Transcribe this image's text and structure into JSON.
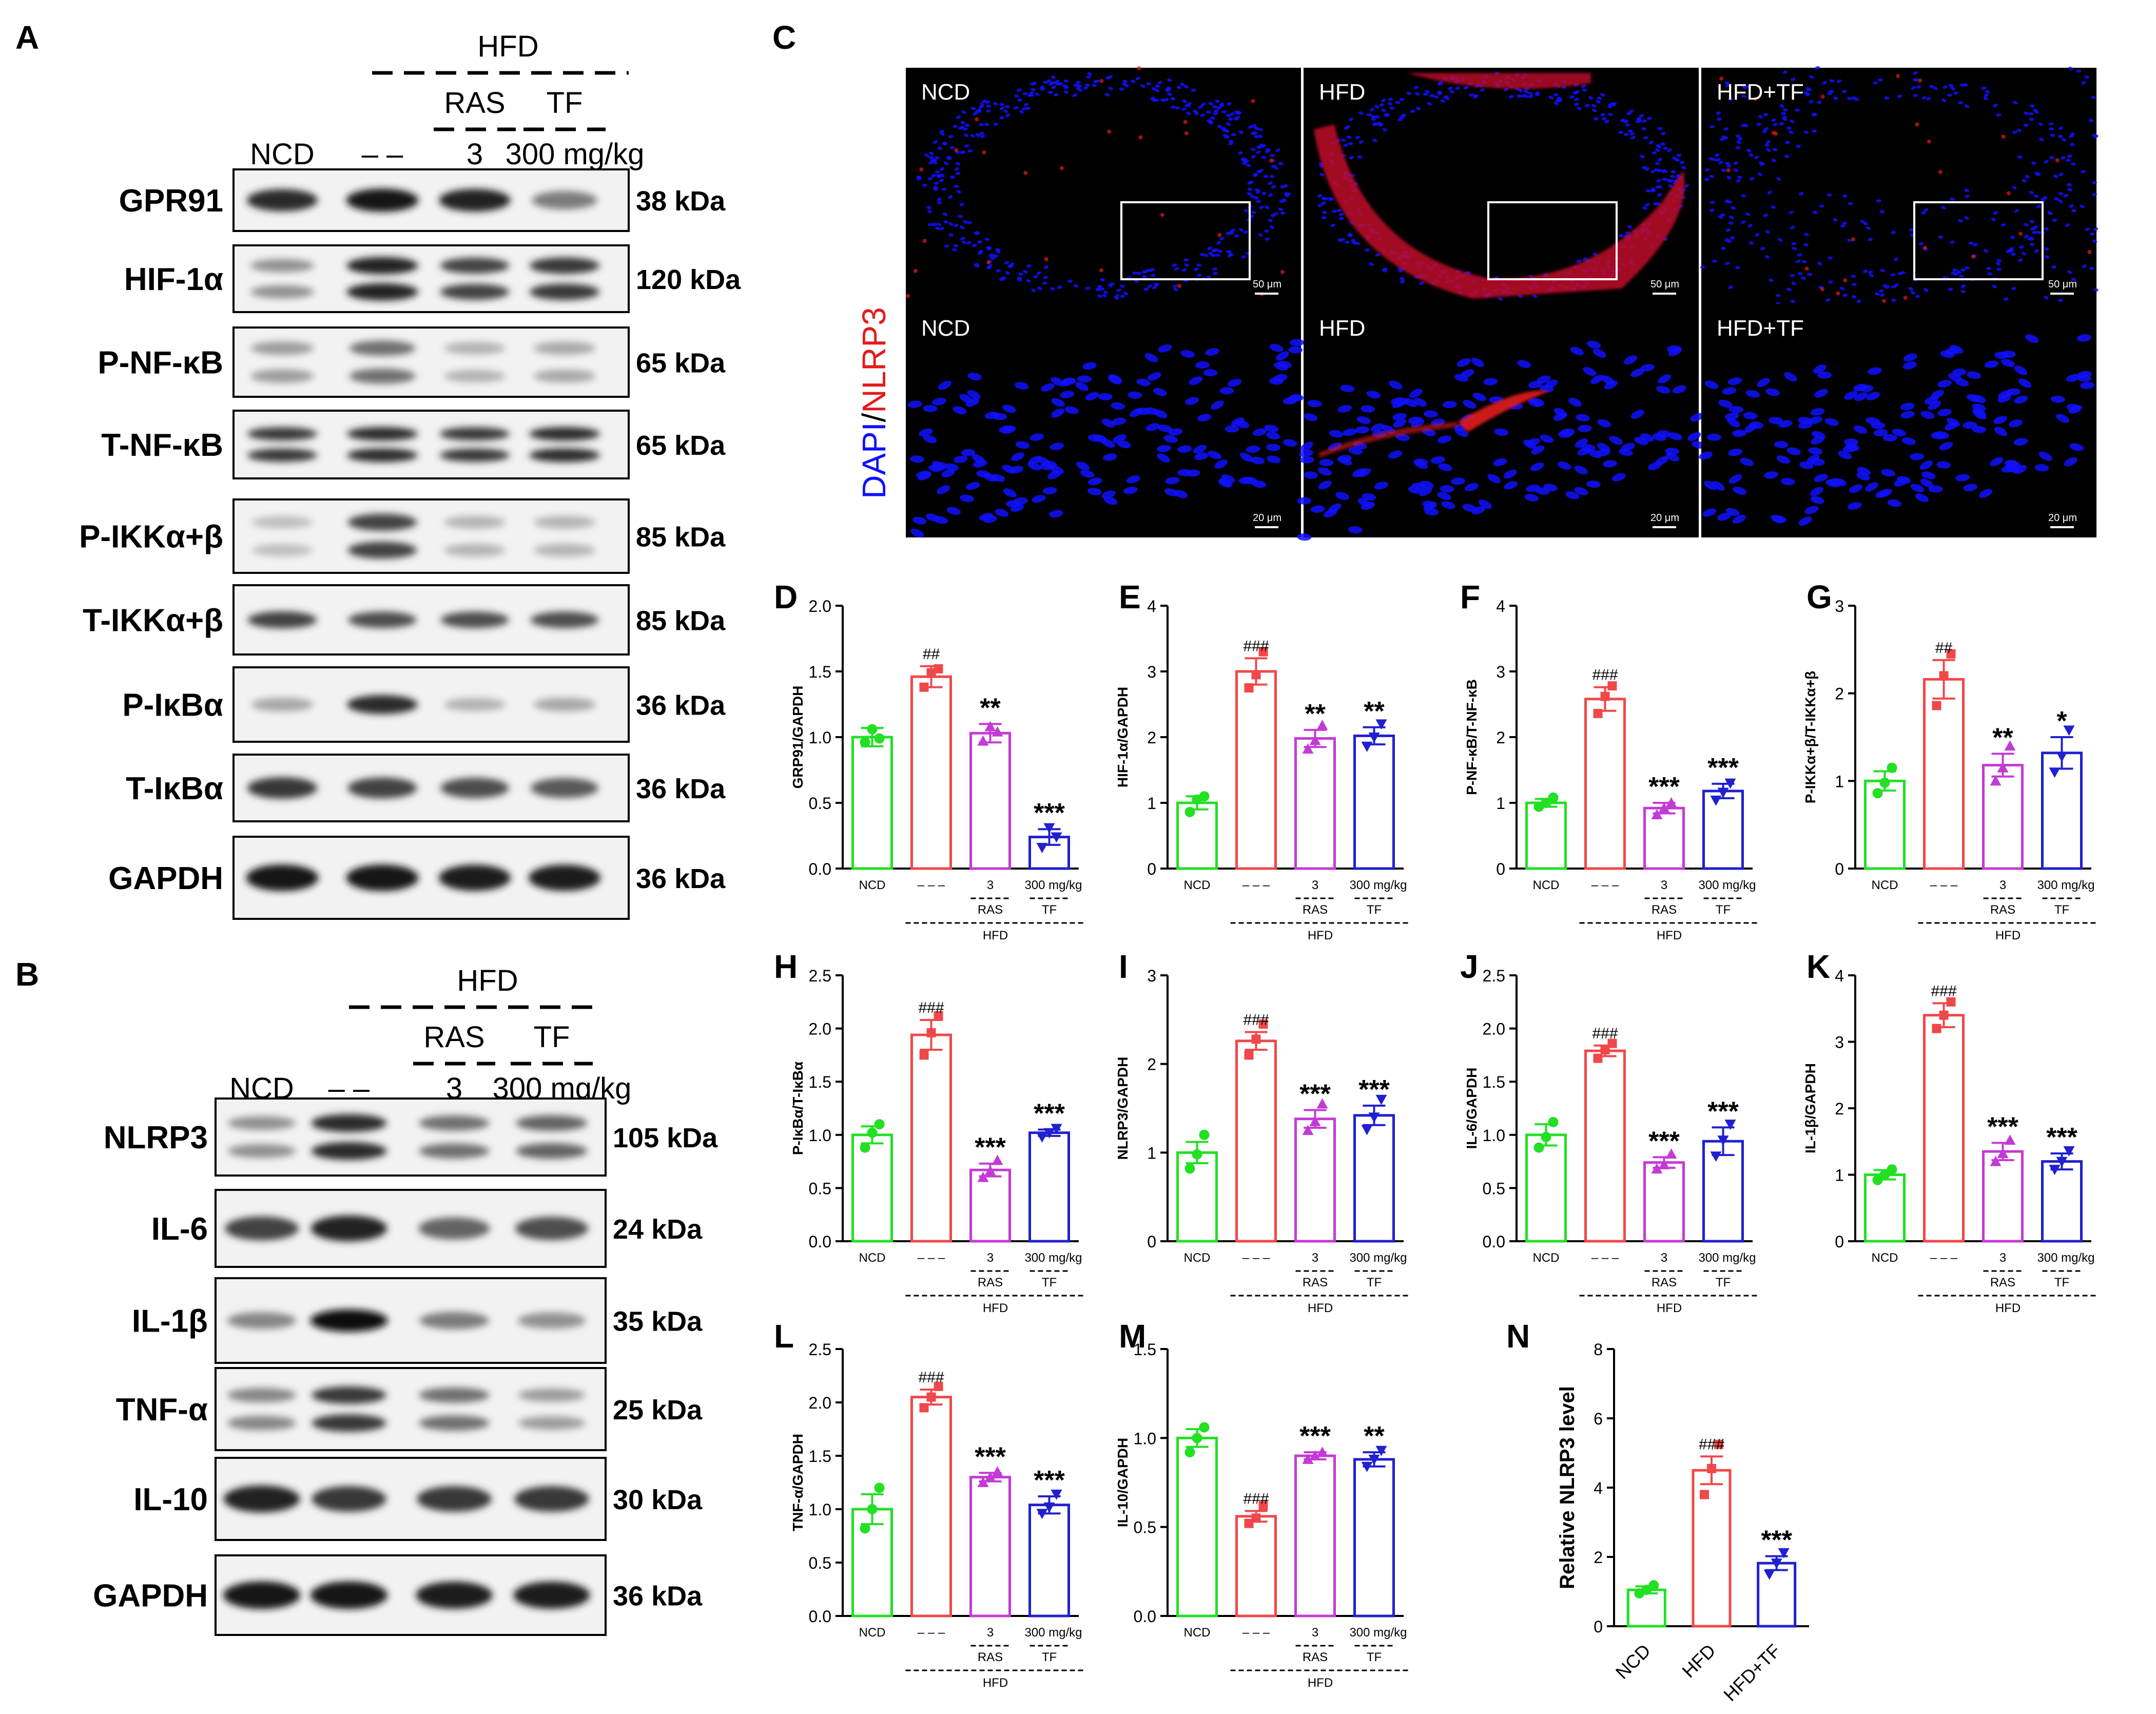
{
  "panel_letters": [
    "A",
    "B",
    "C",
    "D",
    "E",
    "F",
    "G",
    "H",
    "I",
    "J",
    "K",
    "L",
    "M",
    "N"
  ],
  "colors": {
    "ncd": "#22e022",
    "hfd": "#f0484a",
    "ras": "#c43ad6",
    "tf": "#2020d0",
    "dapi": "#1010ff",
    "nlrp3": "#e41a1c",
    "hfd_bg_red": "#c0102a"
  },
  "blot_A": {
    "hfd_label": "HFD",
    "ras_label": "RAS",
    "tf_label": "TF",
    "lane_ncd": "NCD",
    "lane_hfd": "– –",
    "lane_ras": "3",
    "lane_tf": "300 mg/kg",
    "bands": [
      {
        "protein": "GPR91",
        "kda": "38 kDa"
      },
      {
        "protein": "HIF-1α",
        "kda": "120 kDa"
      },
      {
        "protein": "P-NF-κB",
        "kda": "65 kDa"
      },
      {
        "protein": "T-NF-κB",
        "kda": "65 kDa"
      },
      {
        "protein": "P-IKKα+β",
        "kda": "85 kDa"
      },
      {
        "protein": "T-IKKα+β",
        "kda": "85 kDa"
      },
      {
        "protein": "P-IκBα",
        "kda": "36 kDa"
      },
      {
        "protein": "T-IκBα",
        "kda": "36 kDa"
      },
      {
        "protein": "GAPDH",
        "kda": "36 kDa"
      }
    ]
  },
  "blot_B": {
    "hfd_label": "HFD",
    "ras_label": "RAS",
    "tf_label": "TF",
    "lane_ncd": "NCD",
    "lane_hfd": "– –",
    "lane_ras": "3",
    "lane_tf": "300 mg/kg",
    "bands": [
      {
        "protein": "NLRP3",
        "kda": "105 kDa"
      },
      {
        "protein": "IL-6",
        "kda": "24 kDa"
      },
      {
        "protein": "IL-1β",
        "kda": "35 kDa"
      },
      {
        "protein": "TNF-α",
        "kda": "25 kDa"
      },
      {
        "protein": "IL-10",
        "kda": "30 kDa"
      },
      {
        "protein": "GAPDH",
        "kda": "36 kDa"
      }
    ]
  },
  "micro_C": {
    "axis_label_dapi": "DAPI",
    "axis_label_sep": "/",
    "axis_label_nlrp3": "NLRP3",
    "panels": [
      {
        "label": "NCD",
        "scale": "50 μm"
      },
      {
        "label": "HFD",
        "scale": "50 μm"
      },
      {
        "label": "HFD+TF",
        "scale": "50 μm"
      },
      {
        "label": "NCD",
        "scale": "20 μm"
      },
      {
        "label": "HFD",
        "scale": "20 μm"
      },
      {
        "label": "HFD+TF",
        "scale": "20 μm"
      }
    ]
  },
  "group_labels": {
    "ncd": "NCD",
    "hfd": "– – –",
    "ras_dose": "3",
    "tf_dose": "300 mg/kg",
    "ras": "RAS",
    "tf": "TF",
    "hfd_under": "HFD"
  },
  "chart_data": [
    {
      "panel": "D",
      "type": "bar",
      "ylabel": "GRP91/GAPDH",
      "ylim": [
        0,
        2.0
      ],
      "yticks": [
        "0.0",
        "0.5",
        "1.0",
        "1.5",
        "2.0"
      ],
      "values": [
        1.0,
        1.46,
        1.03,
        0.24
      ],
      "points": [
        [
          0.96,
          1.06,
          0.99
        ],
        [
          1.38,
          1.49,
          1.52
        ],
        [
          0.97,
          1.08,
          1.04
        ],
        [
          0.16,
          0.31,
          0.24
        ]
      ],
      "sem": [
        0.07,
        0.08,
        0.07,
        0.06
      ],
      "marks": [
        "",
        "##",
        "**",
        "***"
      ]
    },
    {
      "panel": "E",
      "type": "bar",
      "ylabel": "HIF-1α/GAPDH",
      "ylim": [
        0,
        4
      ],
      "yticks": [
        "0",
        "1",
        "2",
        "3",
        "4"
      ],
      "values": [
        1.0,
        3.0,
        1.98,
        2.02
      ],
      "points": [
        [
          0.86,
          1.05,
          1.1
        ],
        [
          2.75,
          2.95,
          3.3
        ],
        [
          1.82,
          1.95,
          2.18
        ],
        [
          1.86,
          2.0,
          2.2
        ]
      ],
      "sem": [
        0.1,
        0.2,
        0.13,
        0.13
      ],
      "marks": [
        "",
        "###",
        "**",
        "**"
      ]
    },
    {
      "panel": "F",
      "type": "bar",
      "ylabel": "P-NF-κB/T-NF-κB",
      "ylim": [
        0,
        4
      ],
      "yticks": [
        "0",
        "1",
        "2",
        "3",
        "4"
      ],
      "values": [
        1.0,
        2.58,
        0.92,
        1.18
      ],
      "points": [
        [
          0.94,
          1.0,
          1.08
        ],
        [
          2.36,
          2.62,
          2.78
        ],
        [
          0.82,
          0.92,
          1.0
        ],
        [
          1.04,
          1.16,
          1.3
        ]
      ],
      "sem": [
        0.06,
        0.18,
        0.08,
        0.11
      ],
      "marks": [
        "",
        "###",
        "***",
        "***"
      ]
    },
    {
      "panel": "G",
      "type": "bar",
      "ylabel": "P-IKKα+β/T-IKKα+β",
      "ylim": [
        0,
        3
      ],
      "yticks": [
        "0",
        "1",
        "2",
        "3"
      ],
      "values": [
        1.0,
        2.16,
        1.18,
        1.32
      ],
      "points": [
        [
          0.86,
          0.98,
          1.15
        ],
        [
          1.86,
          2.2,
          2.45
        ],
        [
          1.0,
          1.15,
          1.4
        ],
        [
          1.1,
          1.28,
          1.58
        ]
      ],
      "sem": [
        0.11,
        0.22,
        0.13,
        0.18
      ],
      "marks": [
        "",
        "##",
        "**",
        "*"
      ]
    },
    {
      "panel": "H",
      "type": "bar",
      "ylabel": "P-IκBα/T-IκBα",
      "ylim": [
        0,
        2.5
      ],
      "yticks": [
        "0.0",
        "0.5",
        "1.0",
        "1.5",
        "2.0",
        "2.5"
      ],
      "values": [
        1.0,
        1.94,
        0.67,
        1.02
      ],
      "points": [
        [
          0.88,
          1.02,
          1.1
        ],
        [
          1.75,
          1.96,
          2.12
        ],
        [
          0.6,
          0.66,
          0.76
        ],
        [
          0.98,
          1.02,
          1.06
        ]
      ],
      "sem": [
        0.08,
        0.14,
        0.06,
        0.03
      ],
      "marks": [
        "",
        "###",
        "***",
        "***"
      ]
    },
    {
      "panel": "I",
      "type": "bar",
      "ylabel": "NLRP3/GAPDH",
      "ylim": [
        0,
        3
      ],
      "yticks": [
        "0",
        "1",
        "2",
        "3"
      ],
      "values": [
        1.0,
        2.26,
        1.38,
        1.42
      ],
      "points": [
        [
          0.82,
          0.98,
          1.2
        ],
        [
          2.1,
          2.28,
          2.45
        ],
        [
          1.25,
          1.35,
          1.55
        ],
        [
          1.26,
          1.4,
          1.6
        ]
      ],
      "sem": [
        0.12,
        0.1,
        0.1,
        0.11
      ],
      "marks": [
        "",
        "###",
        "***",
        "***"
      ]
    },
    {
      "panel": "J",
      "type": "bar",
      "ylabel": "IL-6/GAPDH",
      "ylim": [
        0,
        2.5
      ],
      "yticks": [
        "0.0",
        "0.5",
        "1.0",
        "1.5",
        "2.0",
        "2.5"
      ],
      "values": [
        1.0,
        1.79,
        0.74,
        0.94
      ],
      "points": [
        [
          0.88,
          0.98,
          1.12
        ],
        [
          1.72,
          1.8,
          1.86
        ],
        [
          0.68,
          0.72,
          0.82
        ],
        [
          0.8,
          0.95,
          1.1
        ]
      ],
      "sem": [
        0.1,
        0.05,
        0.05,
        0.13
      ],
      "marks": [
        "",
        "###",
        "***",
        "***"
      ]
    },
    {
      "panel": "K",
      "type": "bar",
      "ylabel": "IL-1β/GAPDH",
      "ylim": [
        0,
        4
      ],
      "yticks": [
        "0",
        "1",
        "2",
        "3",
        "4"
      ],
      "values": [
        1.0,
        3.4,
        1.35,
        1.2
      ],
      "points": [
        [
          0.92,
          1.0,
          1.08
        ],
        [
          3.2,
          3.4,
          3.6
        ],
        [
          1.2,
          1.32,
          1.52
        ],
        [
          1.08,
          1.2,
          1.36
        ]
      ],
      "sem": [
        0.07,
        0.18,
        0.13,
        0.12
      ],
      "marks": [
        "",
        "###",
        "***",
        "***"
      ]
    },
    {
      "panel": "L",
      "type": "bar",
      "ylabel": "TNF-α/GAPDH",
      "ylim": [
        0,
        2.5
      ],
      "yticks": [
        "0.0",
        "0.5",
        "1.0",
        "1.5",
        "2.0",
        "2.5"
      ],
      "values": [
        1.0,
        2.05,
        1.3,
        1.04
      ],
      "points": [
        [
          0.82,
          1.0,
          1.2
        ],
        [
          1.95,
          2.05,
          2.15
        ],
        [
          1.25,
          1.3,
          1.35
        ],
        [
          0.96,
          1.02,
          1.14
        ]
      ],
      "sem": [
        0.14,
        0.07,
        0.04,
        0.08
      ],
      "marks": [
        "",
        "###",
        "***",
        "***"
      ]
    },
    {
      "panel": "M",
      "type": "bar",
      "ylabel": "IL-10/GAPDH",
      "ylim": [
        0,
        1.5
      ],
      "yticks": [
        "0.0",
        "0.5",
        "1.0",
        "1.5"
      ],
      "values": [
        1.0,
        0.56,
        0.9,
        0.88
      ],
      "points": [
        [
          0.92,
          1.0,
          1.06
        ],
        [
          0.52,
          0.55,
          0.62
        ],
        [
          0.88,
          0.9,
          0.92
        ],
        [
          0.84,
          0.88,
          0.93
        ]
      ],
      "sem": [
        0.05,
        0.03,
        0.02,
        0.04
      ],
      "marks": [
        "",
        "###",
        "***",
        "**"
      ]
    },
    {
      "panel": "N",
      "type": "bar",
      "ylabel": "Relative NLRP3 level",
      "ylim": [
        0,
        8
      ],
      "yticks": [
        "0",
        "2",
        "4",
        "6",
        "8"
      ],
      "categories": [
        "NCD",
        "HFD",
        "HFD+TF"
      ],
      "values": [
        1.05,
        4.5,
        1.82
      ],
      "points": [
        [
          0.95,
          1.05,
          1.18
        ],
        [
          3.8,
          4.55,
          5.25
        ],
        [
          1.5,
          1.82,
          2.12
        ]
      ],
      "sem": [
        0.1,
        0.4,
        0.2
      ],
      "marks": [
        "",
        "###",
        "***"
      ]
    }
  ]
}
